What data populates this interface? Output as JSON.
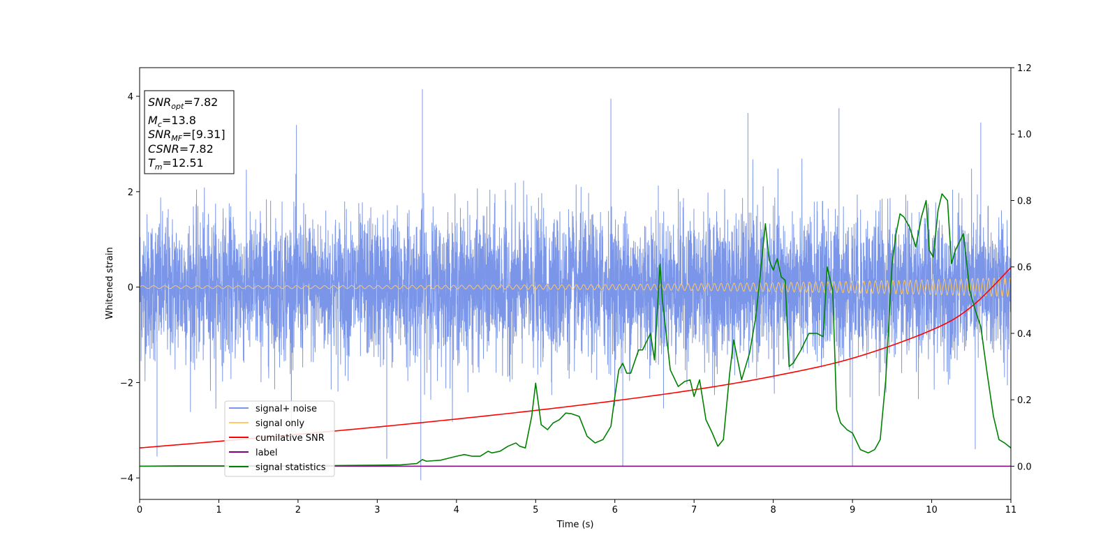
{
  "chart_data": {
    "type": "line",
    "xlabel": "Time (s)",
    "ylabel": "Whitened strain",
    "xlim": [
      0,
      11
    ],
    "ylim_left": [
      -4.45,
      4.6
    ],
    "ylim_right": [
      -0.1,
      1.2
    ],
    "x_ticks": [
      0,
      1,
      2,
      3,
      4,
      5,
      6,
      7,
      8,
      9,
      10,
      11
    ],
    "y_ticks_left": [
      -4,
      -2,
      0,
      2,
      4
    ],
    "y_ticks_right": [
      0.0,
      0.2,
      0.4,
      0.6,
      0.8,
      1.0,
      1.2
    ],
    "x_tick_labels": [
      "0",
      "1",
      "2",
      "3",
      "4",
      "5",
      "6",
      "7",
      "8",
      "9",
      "10",
      "11"
    ],
    "y_tick_labels_left": [
      "−4",
      "−2",
      "0",
      "2",
      "4"
    ],
    "y_tick_labels_right": [
      "0.0",
      "0.2",
      "0.4",
      "0.6",
      "0.8",
      "1.0",
      "1.2"
    ],
    "grid": false,
    "legend_position": "lower-left",
    "info_box": {
      "snr_opt": {
        "main": "SNR",
        "sub": "opt",
        "value": "=7.82"
      },
      "mc": {
        "main": "M",
        "sub": "c",
        "value": "=13.8"
      },
      "snr_mf": {
        "main": "SNR",
        "sub": "MF",
        "value": "=[9.31]"
      },
      "csnr": {
        "main": "CSNR",
        "sub": "",
        "value": "=7.82"
      },
      "tm": {
        "main": "T",
        "sub": "m",
        "value": "=12.51"
      }
    },
    "series": [
      {
        "name": "signal+ noise",
        "axis": "left",
        "color": "#7b96e8",
        "kind": "noise",
        "std": 0.75,
        "notable_spikes": [
          [
            3.57,
            4.15
          ],
          [
            5.95,
            3.95
          ],
          [
            8.83,
            3.75
          ],
          [
            7.68,
            3.65
          ],
          [
            10.62,
            3.45
          ],
          [
            1.98,
            3.4
          ],
          [
            3.55,
            -4.05
          ],
          [
            0.22,
            -3.55
          ],
          [
            3.12,
            -3.6
          ],
          [
            6.1,
            -3.75
          ],
          [
            9.0,
            -3.75
          ],
          [
            10.55,
            -3.4
          ]
        ]
      },
      {
        "name": "signal only",
        "axis": "left",
        "color": "#ffc966",
        "kind": "chirp",
        "amplitude_start": 0.03,
        "amplitude_end": 0.2
      },
      {
        "name": "cumilative SNR",
        "axis": "right",
        "color": "#ff0000",
        "x": [
          0,
          1,
          2,
          3,
          4,
          5,
          6,
          7,
          8,
          9,
          10,
          10.5,
          11
        ],
        "y": [
          0.055,
          0.075,
          0.096,
          0.118,
          0.142,
          0.168,
          0.197,
          0.23,
          0.271,
          0.325,
          0.41,
          0.48,
          0.598
        ]
      },
      {
        "name": "label",
        "axis": "right",
        "color": "#800080",
        "x": [
          0,
          11
        ],
        "y": [
          0.0,
          0.0
        ]
      },
      {
        "name": "signal statistics",
        "axis": "right",
        "color": "#008000",
        "x": [
          0,
          0.5,
          1,
          1.5,
          2,
          2.5,
          3,
          3.3,
          3.5,
          3.57,
          3.62,
          3.8,
          4.0,
          4.1,
          4.2,
          4.3,
          4.4,
          4.45,
          4.55,
          4.65,
          4.75,
          4.8,
          4.87,
          4.95,
          5.0,
          5.07,
          5.15,
          5.22,
          5.3,
          5.38,
          5.45,
          5.55,
          5.65,
          5.75,
          5.85,
          5.95,
          6.0,
          6.05,
          6.1,
          6.15,
          6.2,
          6.3,
          6.35,
          6.45,
          6.5,
          6.57,
          6.6,
          6.7,
          6.8,
          6.88,
          6.95,
          7.0,
          7.07,
          7.15,
          7.23,
          7.3,
          7.37,
          7.45,
          7.5,
          7.6,
          7.7,
          7.78,
          7.85,
          7.9,
          7.95,
          8.0,
          8.05,
          8.1,
          8.15,
          8.2,
          8.25,
          8.35,
          8.45,
          8.55,
          8.63,
          8.68,
          8.75,
          8.8,
          8.85,
          8.93,
          9.0,
          9.1,
          9.2,
          9.28,
          9.35,
          9.42,
          9.5,
          9.55,
          9.6,
          9.65,
          9.72,
          9.8,
          9.87,
          9.93,
          9.97,
          10.02,
          10.08,
          10.13,
          10.2,
          10.25,
          10.3,
          10.4,
          10.48,
          10.55,
          10.62,
          10.7,
          10.78,
          10.85,
          10.92,
          11.0
        ],
        "y": [
          0.0,
          0.001,
          0.001,
          0.001,
          0.001,
          0.002,
          0.003,
          0.004,
          0.008,
          0.02,
          0.015,
          0.018,
          0.03,
          0.035,
          0.03,
          0.03,
          0.045,
          0.04,
          0.045,
          0.06,
          0.07,
          0.06,
          0.055,
          0.15,
          0.25,
          0.125,
          0.11,
          0.13,
          0.14,
          0.16,
          0.158,
          0.15,
          0.09,
          0.07,
          0.08,
          0.12,
          0.21,
          0.29,
          0.31,
          0.28,
          0.28,
          0.35,
          0.35,
          0.4,
          0.32,
          0.609,
          0.5,
          0.29,
          0.24,
          0.255,
          0.26,
          0.21,
          0.26,
          0.14,
          0.1,
          0.06,
          0.08,
          0.28,
          0.38,
          0.26,
          0.34,
          0.45,
          0.61,
          0.73,
          0.62,
          0.59,
          0.625,
          0.57,
          0.56,
          0.3,
          0.31,
          0.35,
          0.4,
          0.4,
          0.39,
          0.6,
          0.53,
          0.17,
          0.13,
          0.11,
          0.1,
          0.05,
          0.04,
          0.05,
          0.08,
          0.26,
          0.61,
          0.7,
          0.76,
          0.75,
          0.72,
          0.66,
          0.75,
          0.8,
          0.65,
          0.63,
          0.77,
          0.82,
          0.8,
          0.61,
          0.65,
          0.7,
          0.53,
          0.47,
          0.42,
          0.28,
          0.15,
          0.08,
          0.07,
          0.055
        ]
      }
    ]
  }
}
